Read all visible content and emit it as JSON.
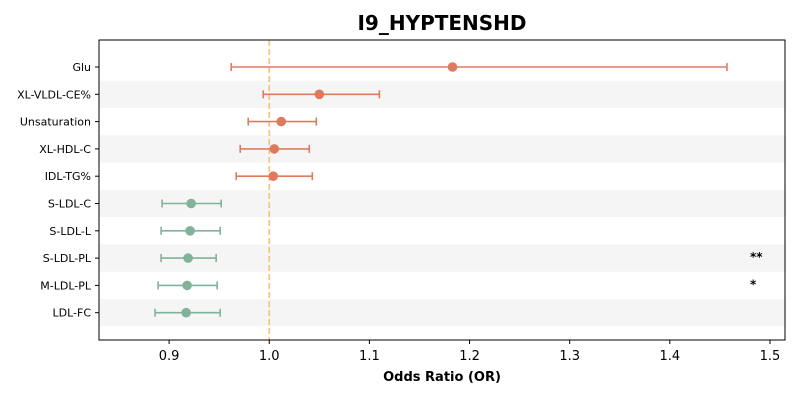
{
  "chart_data": {
    "type": "forest",
    "title": "I9_HYPTENSHD",
    "xlabel": "Odds Ratio (OR)",
    "xlim": [
      0.83,
      1.515
    ],
    "xticks": [
      0.9,
      1.0,
      1.1,
      1.2,
      1.3,
      1.4,
      1.5
    ],
    "xtick_labels": [
      "0.9",
      "1.0",
      "1.1",
      "1.2",
      "1.3",
      "1.4",
      "1.5"
    ],
    "reference_line": 1.0,
    "grid": false,
    "colors": {
      "positive": "#e07a5f",
      "negative": "#81b29a",
      "reference": "#f4c27a",
      "stripe": "#f5f5f5"
    },
    "rows": [
      {
        "label": "Glu",
        "or": 1.183,
        "ci_low": 0.962,
        "ci_high": 1.457,
        "sig": ""
      },
      {
        "label": "XL-VLDL-CE%",
        "or": 1.05,
        "ci_low": 0.994,
        "ci_high": 1.11,
        "sig": ""
      },
      {
        "label": "Unsaturation",
        "or": 1.012,
        "ci_low": 0.979,
        "ci_high": 1.047,
        "sig": ""
      },
      {
        "label": "XL-HDL-C",
        "or": 1.005,
        "ci_low": 0.971,
        "ci_high": 1.04,
        "sig": ""
      },
      {
        "label": "IDL-TG%",
        "or": 1.004,
        "ci_low": 0.967,
        "ci_high": 1.043,
        "sig": ""
      },
      {
        "label": "S-LDL-C",
        "or": 0.922,
        "ci_low": 0.893,
        "ci_high": 0.952,
        "sig": ""
      },
      {
        "label": "S-LDL-L",
        "or": 0.921,
        "ci_low": 0.892,
        "ci_high": 0.951,
        "sig": ""
      },
      {
        "label": "S-LDL-PL",
        "or": 0.919,
        "ci_low": 0.892,
        "ci_high": 0.947,
        "sig": "**"
      },
      {
        "label": "M-LDL-PL",
        "or": 0.918,
        "ci_low": 0.889,
        "ci_high": 0.948,
        "sig": "*"
      },
      {
        "label": "LDL-FC",
        "or": 0.917,
        "ci_low": 0.886,
        "ci_high": 0.951,
        "sig": ""
      }
    ]
  }
}
